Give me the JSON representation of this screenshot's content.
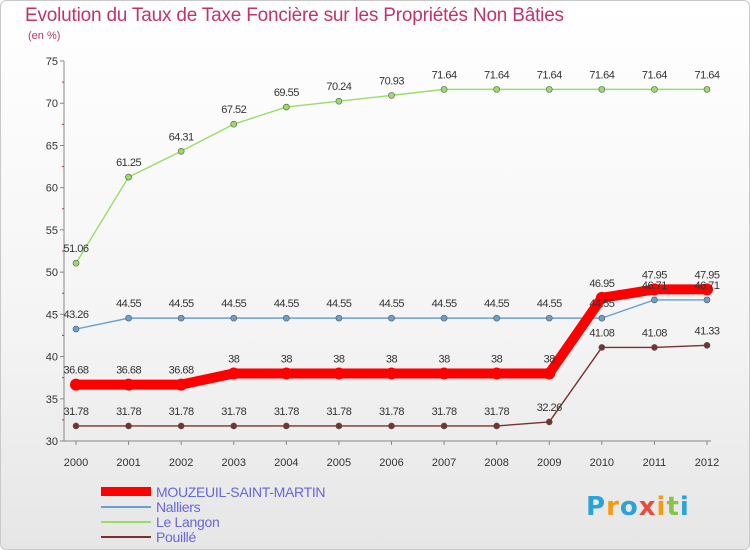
{
  "chart_data": {
    "type": "line",
    "title": "Evolution du Taux de Taxe Foncière sur les Propriétés Non Bâties",
    "subtitle": "(en %)",
    "x": [
      "2000",
      "2001",
      "2002",
      "2003",
      "2004",
      "2005",
      "2006",
      "2007",
      "2008",
      "2009",
      "2010",
      "2011",
      "2012"
    ],
    "ylim": [
      30,
      75
    ],
    "yticks": [
      "30",
      "35",
      "40",
      "45",
      "50",
      "55",
      "60",
      "65",
      "70",
      "75"
    ],
    "grid": false,
    "legend_position": "bottom-left",
    "series": [
      {
        "name": "MOUZEUIL-SAINT-MARTIN",
        "color": "#ff0000",
        "values": [
          36.68,
          36.68,
          36.68,
          38,
          38,
          38,
          38,
          38,
          38,
          38,
          46.95,
          47.95,
          47.95
        ],
        "labels": [
          "36.68",
          "36.68",
          "36.68",
          "38",
          "38",
          "38",
          "38",
          "38",
          "38",
          "38",
          "46.95",
          "47.95",
          "47.95"
        ]
      },
      {
        "name": "Nalliers",
        "color": "#6a9fd0",
        "values": [
          43.26,
          44.55,
          44.55,
          44.55,
          44.55,
          44.55,
          44.55,
          44.55,
          44.55,
          44.55,
          44.55,
          46.71,
          46.71
        ],
        "labels": [
          "43.26",
          "44.55",
          "44.55",
          "44.55",
          "44.55",
          "44.55",
          "44.55",
          "44.55",
          "44.55",
          "44.55",
          "44.55",
          "46.71",
          "46.71"
        ]
      },
      {
        "name": "Le Langon",
        "color": "#99dd66",
        "values": [
          51.06,
          61.25,
          64.31,
          67.52,
          69.55,
          70.24,
          70.93,
          71.64,
          71.64,
          71.64,
          71.64,
          71.64,
          71.64
        ],
        "labels": [
          "51.06",
          "61.25",
          "64.31",
          "67.52",
          "69.55",
          "70.24",
          "70.93",
          "71.64",
          "71.64",
          "71.64",
          "71.64",
          "71.64",
          "71.64"
        ]
      },
      {
        "name": "Pouillé",
        "color": "#7a3030",
        "values": [
          31.78,
          31.78,
          31.78,
          31.78,
          31.78,
          31.78,
          31.78,
          31.78,
          31.78,
          32.26,
          41.08,
          41.08,
          41.33
        ],
        "labels": [
          "31.78",
          "31.78",
          "31.78",
          "31.78",
          "31.78",
          "31.78",
          "31.78",
          "31.78",
          "31.78",
          "32.26",
          "41.08",
          "41.08",
          "41.33"
        ]
      }
    ]
  },
  "logo": {
    "letters": [
      "P",
      "r",
      "o",
      "x",
      "i",
      "t",
      "i"
    ],
    "colors": [
      "#2aa3d8",
      "#f39c12",
      "#2aa3d8",
      "#e74c3c",
      "#f39c12",
      "#8bc34a",
      "#2aa3d8"
    ]
  }
}
